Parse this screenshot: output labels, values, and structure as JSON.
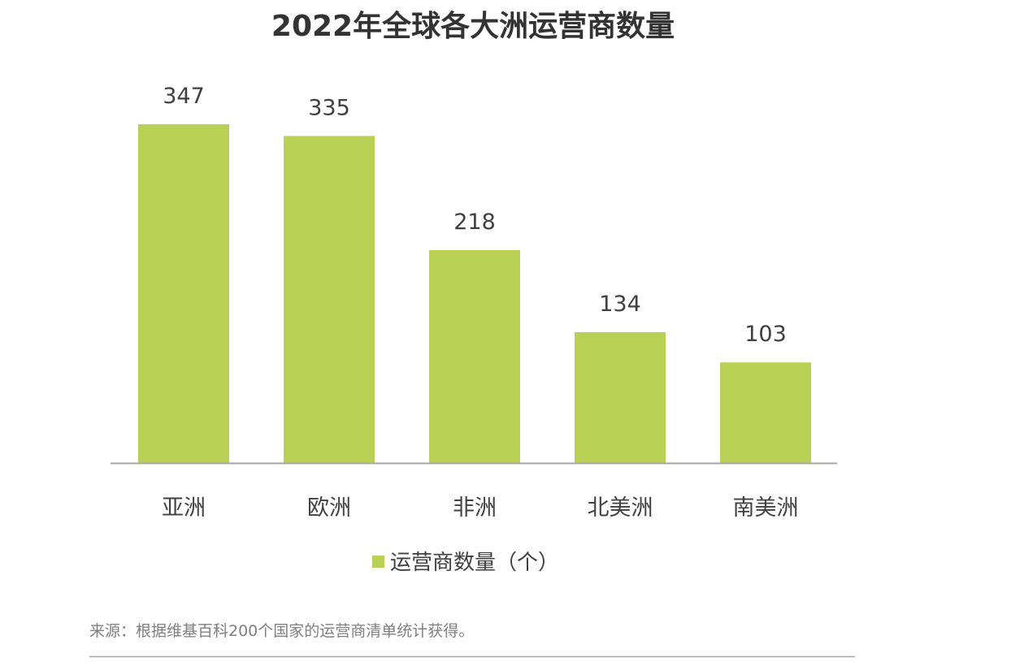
{
  "chart_data": {
    "type": "bar",
    "title": "2022年全球各大洲运营商数量",
    "categories": [
      "亚洲",
      "欧洲",
      "非洲",
      "北美洲",
      "南美洲"
    ],
    "series": [
      {
        "name": "运营商数量（个）",
        "values": [
          347,
          335,
          218,
          134,
          103
        ],
        "color": "#b8d155"
      }
    ],
    "ylim": [
      0,
      347
    ],
    "grid": false,
    "data_labels": true,
    "legend": "bottom",
    "xlabel": "",
    "ylabel": ""
  },
  "source": "来源：根据维基百科200个国家的运营商清单统计获得。"
}
